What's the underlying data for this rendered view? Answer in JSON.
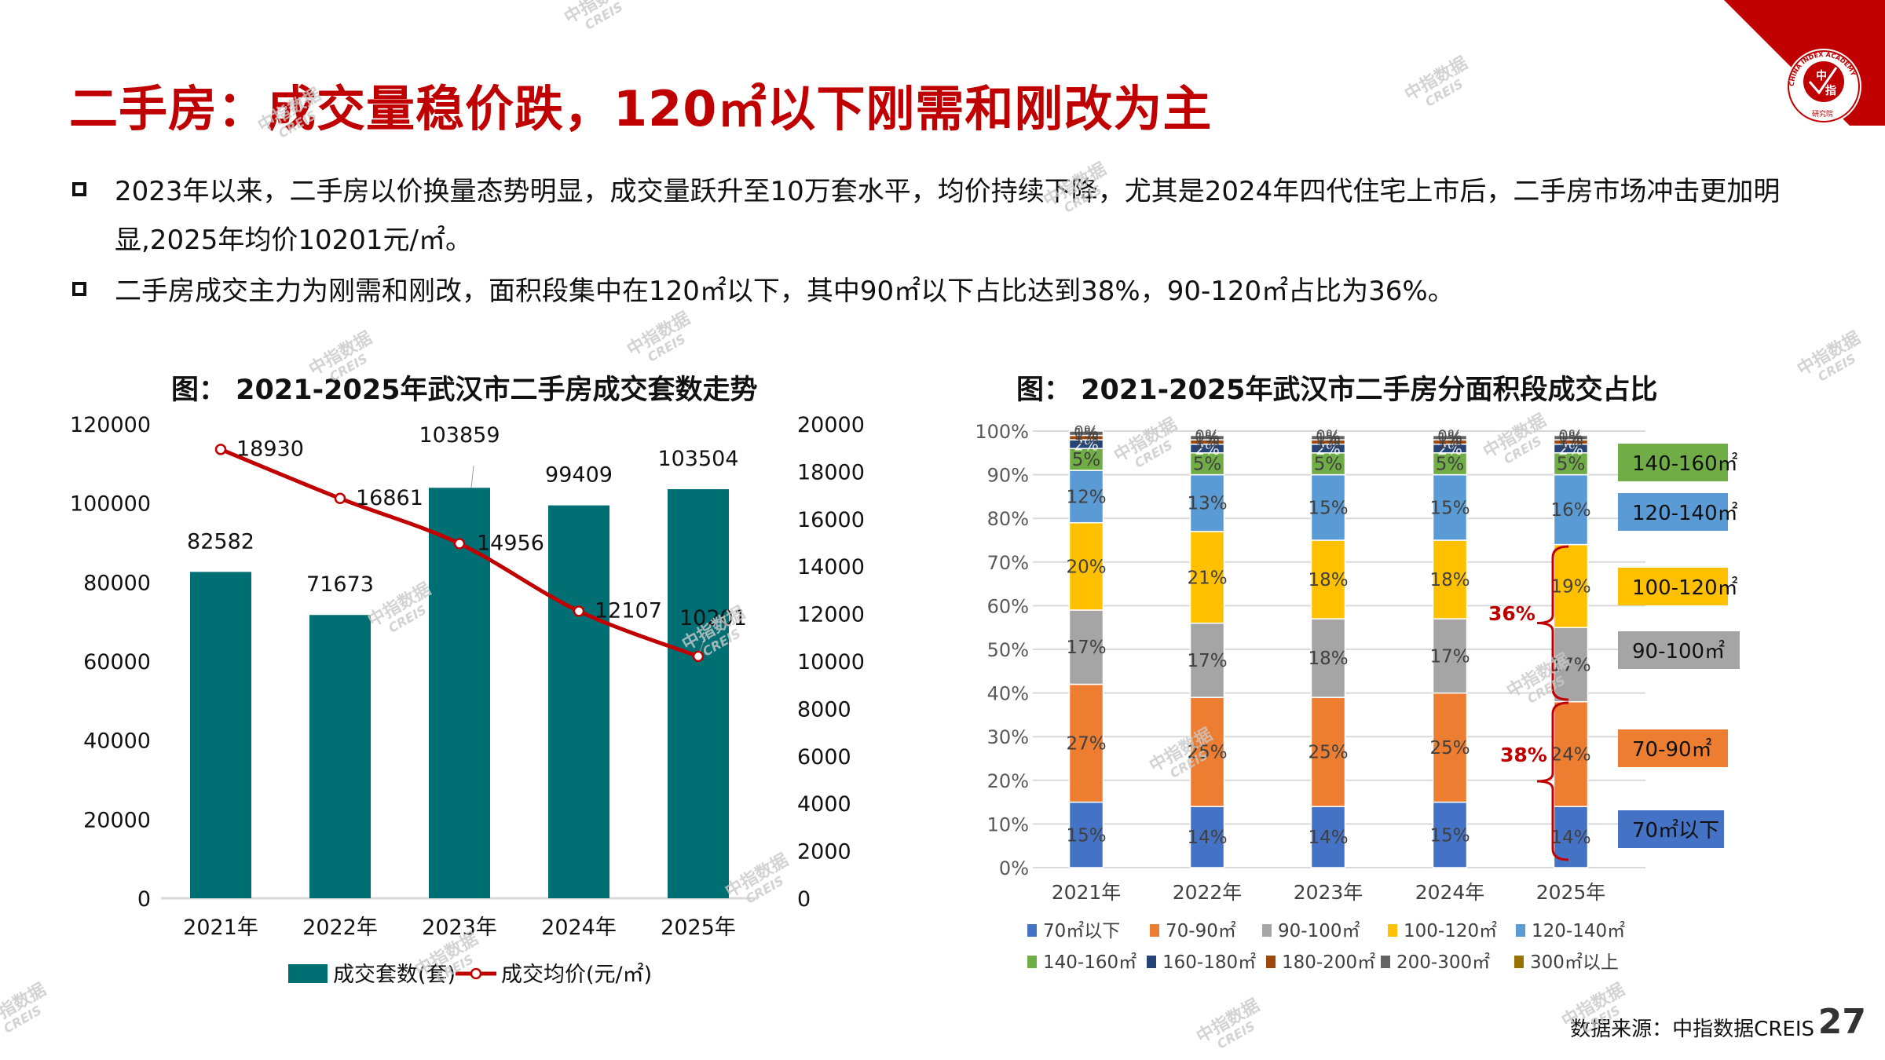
{
  "header": {
    "title": "二手房：成交量稳价跌，120㎡以下刚需和刚改为主",
    "logo": {
      "outer_text": "CHINA INDEX ACADEMY",
      "inner_top": "中",
      "inner_bottom": "指",
      "bottom_text": "研究院",
      "brand_color": "#c00000"
    }
  },
  "bullets": [
    {
      "line1": "2023年以来，二手房以价换量态势明显，成交量跃升至10万套水平，均价持续下降，尤其是2024年四代住宅上市后，二手房市场冲击更加明",
      "line2": "显,2025年均价10201元/㎡。"
    },
    {
      "line1": "二手房成交主力为刚需和刚改，面积段集中在120㎡以下，其中90㎡以下占比达到38%，90-120㎡占比为36%。"
    }
  ],
  "watermark": {
    "line1": "中指数据",
    "line2": "CREIS"
  },
  "footer": {
    "source": "数据来源：中指数据CREIS",
    "page": "27"
  },
  "chart_data": [
    {
      "type": "bar",
      "title": "图：  2021-2025年武汉市二手房成交套数走势",
      "categories": [
        "2021年",
        "2022年",
        "2023年",
        "2024年",
        "2025年"
      ],
      "series": [
        {
          "name": "成交套数(套)",
          "kind": "bar",
          "axis": "left",
          "color": "#006f74",
          "values": [
            82582,
            71673,
            103859,
            99409,
            103504
          ]
        },
        {
          "name": "成交均价(元/㎡)",
          "kind": "line",
          "axis": "right",
          "color": "#c00000",
          "values": [
            18930,
            16861,
            14956,
            12107,
            10201
          ]
        }
      ],
      "y_left": {
        "min": 0,
        "max": 120000,
        "ticks": [
          0,
          20000,
          40000,
          60000,
          80000,
          100000,
          120000
        ]
      },
      "y_right": {
        "min": 0,
        "max": 20000,
        "ticks": [
          0,
          2000,
          4000,
          6000,
          8000,
          10000,
          12000,
          14000,
          16000,
          18000,
          20000
        ]
      },
      "grid": false,
      "legend": "bottom"
    },
    {
      "type": "bar",
      "stacked": "percent",
      "title": "图：  2021-2025年武汉市二手房分面积段成交占比",
      "categories": [
        "2021年",
        "2022年",
        "2023年",
        "2024年",
        "2025年"
      ],
      "series": [
        {
          "name": "70㎡以下",
          "color": "#4472c4",
          "values": [
            15,
            14,
            14,
            15,
            14
          ]
        },
        {
          "name": "70-90㎡",
          "color": "#ed7d31",
          "values": [
            27,
            25,
            25,
            25,
            24
          ]
        },
        {
          "name": "90-100㎡",
          "color": "#a5a5a5",
          "values": [
            17,
            17,
            18,
            17,
            17
          ]
        },
        {
          "name": "100-120㎡",
          "color": "#ffc000",
          "values": [
            20,
            21,
            18,
            18,
            19
          ]
        },
        {
          "name": "120-140㎡",
          "color": "#5b9bd5",
          "values": [
            12,
            13,
            15,
            15,
            16
          ]
        },
        {
          "name": "140-160㎡",
          "color": "#70ad47",
          "values": [
            5,
            5,
            5,
            5,
            5
          ]
        },
        {
          "name": "160-180㎡",
          "color": "#264478",
          "values": [
            2,
            2,
            2,
            2,
            2
          ]
        },
        {
          "name": "180-200㎡",
          "color": "#9e480e",
          "values": [
            1,
            1,
            1,
            1,
            1
          ]
        },
        {
          "name": "200-300㎡",
          "color": "#636363",
          "values": [
            1,
            1,
            1,
            1,
            1
          ]
        },
        {
          "name": "300㎡以上",
          "color": "#997300",
          "values": [
            0,
            0,
            0,
            0,
            0
          ]
        }
      ],
      "y": {
        "min": 0,
        "max": 100,
        "unit": "%",
        "ticks": [
          "0%",
          "10%",
          "20%",
          "30%",
          "40%",
          "50%",
          "60%",
          "70%",
          "80%",
          "90%",
          "100%"
        ]
      },
      "grid": true,
      "legend": "bottom",
      "annotations": [
        {
          "text": "36%",
          "brace_range": [
            "90-100㎡",
            "100-120㎡"
          ],
          "color": "#c00000"
        },
        {
          "text": "38%",
          "brace_range": [
            "70㎡以下",
            "70-90㎡"
          ],
          "color": "#c00000"
        }
      ],
      "callout_labels": [
        "140-160㎡",
        "120-140㎡",
        "100-120㎡",
        "90-100㎡",
        "70-90㎡",
        "70㎡以下"
      ]
    }
  ]
}
